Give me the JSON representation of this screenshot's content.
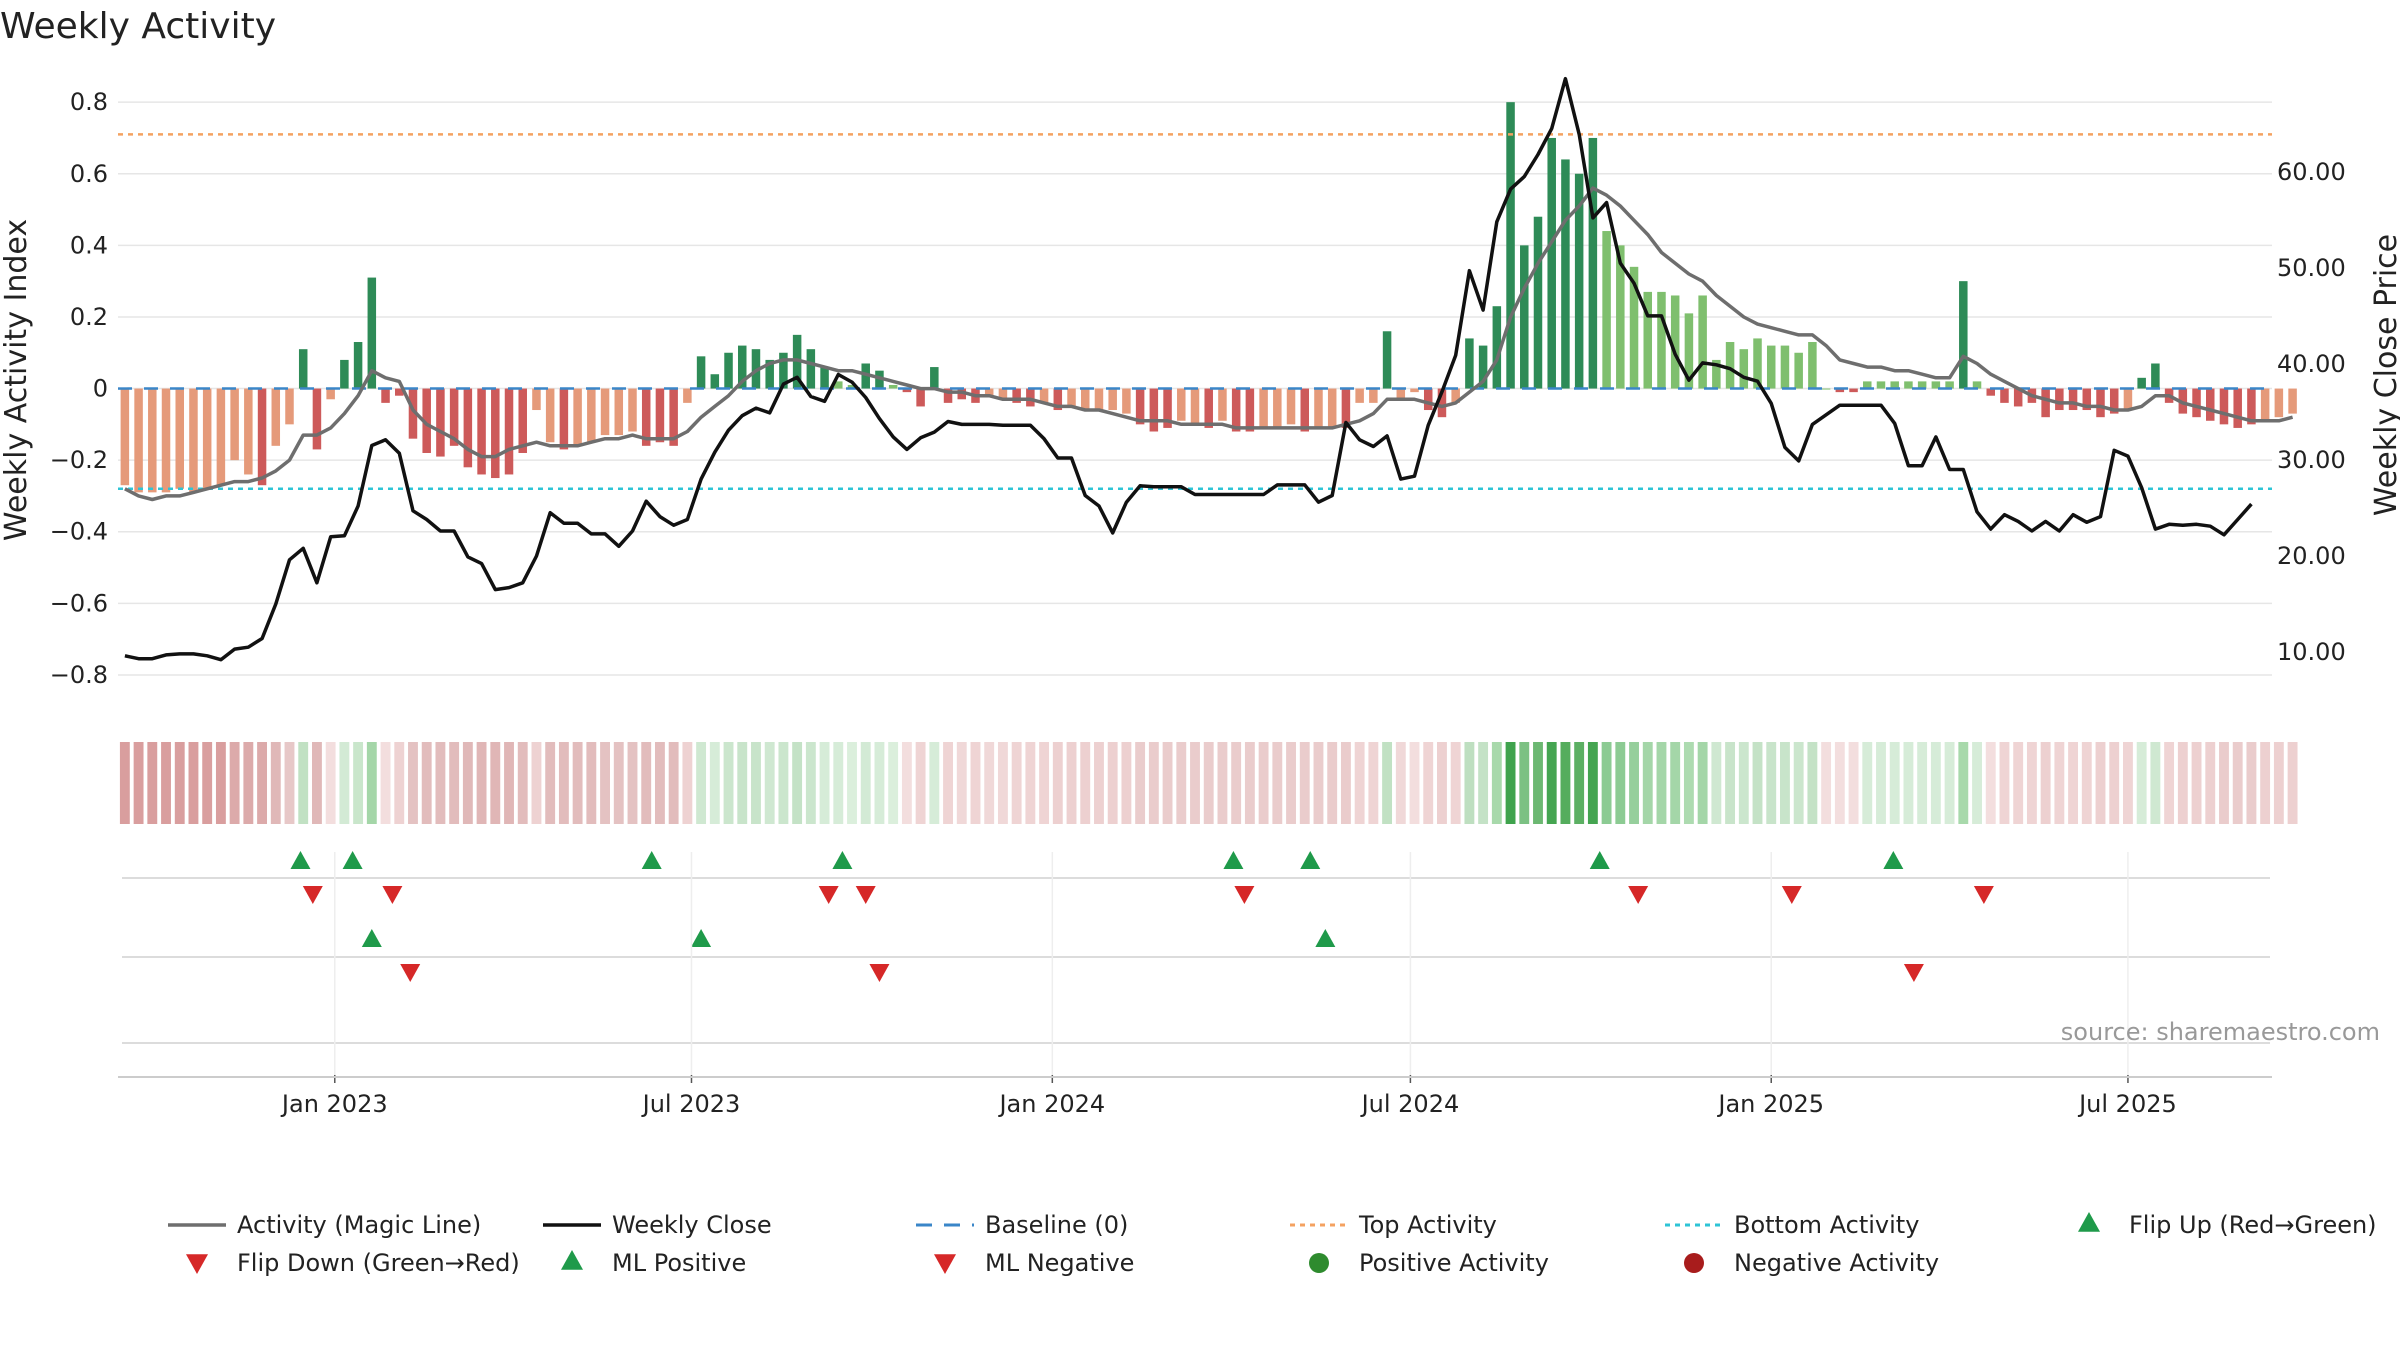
{
  "chart_data": {
    "type": "bar+line",
    "title": "Weekly Activity",
    "ylabel_left": "Weekly Activity Index",
    "ylabel_right": "Weekly Close Price",
    "ylim_left": [
      -0.87,
      0.82
    ],
    "ylim_right": [
      5.0,
      68.0
    ],
    "yticks_left": [
      {
        "value": 0.8,
        "label": "0.8"
      },
      {
        "value": 0.6,
        "label": "0.6"
      },
      {
        "value": 0.4,
        "label": "0.4"
      },
      {
        "value": 0.2,
        "label": "0.2"
      },
      {
        "value": 0,
        "label": "0"
      },
      {
        "value": -0.2,
        "label": "−0.2"
      },
      {
        "value": -0.4,
        "label": "−0.4"
      },
      {
        "value": -0.6,
        "label": "−0.6"
      },
      {
        "value": -0.8,
        "label": "−0.8"
      }
    ],
    "yticks_right": [
      {
        "value": 60,
        "label": "60.00"
      },
      {
        "value": 50,
        "label": "50.00"
      },
      {
        "value": 40,
        "label": "40.00"
      },
      {
        "value": 30,
        "label": "30.00"
      },
      {
        "value": 20,
        "label": "20.00"
      },
      {
        "value": 10,
        "label": "10.00"
      }
    ],
    "x_start_week": 0,
    "n_weeks": 157,
    "xticks": [
      {
        "week": 15.3,
        "label": "Jan 2023"
      },
      {
        "week": 41.3,
        "label": "Jul 2023"
      },
      {
        "week": 67.6,
        "label": "Jan 2024"
      },
      {
        "week": 93.7,
        "label": "Jul 2024"
      },
      {
        "week": 120.0,
        "label": "Jan 2025"
      },
      {
        "week": 146.0,
        "label": "Jul 2025"
      }
    ],
    "top_activity": 0.71,
    "bottom_activity": -0.28,
    "baseline": 0,
    "activity": [
      -0.27,
      -0.29,
      -0.29,
      -0.29,
      -0.28,
      -0.29,
      -0.28,
      -0.27,
      -0.2,
      -0.24,
      -0.27,
      -0.16,
      -0.1,
      0.11,
      -0.17,
      -0.03,
      0.08,
      0.13,
      0.31,
      -0.04,
      -0.02,
      -0.14,
      -0.18,
      -0.19,
      -0.16,
      -0.22,
      -0.24,
      -0.25,
      -0.24,
      -0.18,
      -0.06,
      -0.15,
      -0.17,
      -0.16,
      -0.15,
      -0.13,
      -0.13,
      -0.12,
      -0.16,
      -0.15,
      -0.16,
      -0.04,
      0.09,
      0.04,
      0.1,
      0.12,
      0.11,
      0.08,
      0.1,
      0.15,
      0.11,
      0.06,
      0.02,
      0.01,
      0.07,
      0.05,
      0.01,
      -0.01,
      -0.05,
      0.06,
      -0.04,
      -0.03,
      -0.04,
      -0.02,
      -0.03,
      -0.04,
      -0.05,
      -0.04,
      -0.06,
      -0.05,
      -0.06,
      -0.06,
      -0.06,
      -0.07,
      -0.1,
      -0.12,
      -0.11,
      -0.09,
      -0.1,
      -0.11,
      -0.09,
      -0.12,
      -0.12,
      -0.11,
      -0.11,
      -0.1,
      -0.12,
      -0.11,
      -0.11,
      -0.11,
      -0.04,
      -0.04,
      0.16,
      -0.03,
      -0.01,
      -0.06,
      -0.08,
      -0.04,
      0.14,
      0.12,
      0.23,
      0.8,
      0.4,
      0.48,
      0.7,
      0.64,
      0.6,
      0.7,
      0.44,
      0.4,
      0.34,
      0.27,
      0.27,
      0.26,
      0.21,
      0.26,
      0.08,
      0.13,
      0.11,
      0.14,
      0.12,
      0.12,
      0.1,
      0.13,
      0.0,
      -0.01,
      -0.01,
      0.02,
      0.02,
      0.02,
      0.02,
      0.02,
      0.02,
      0.02,
      0.3,
      0.02,
      -0.02,
      -0.04,
      -0.05,
      -0.04,
      -0.08,
      -0.06,
      -0.06,
      -0.06,
      -0.08,
      -0.07,
      -0.06,
      0.03,
      0.07,
      -0.04,
      -0.07,
      -0.08,
      -0.09,
      -0.1,
      -0.11,
      -0.1,
      -0.09,
      -0.08,
      -0.07
    ],
    "magic_line": [
      -0.28,
      -0.3,
      -0.31,
      -0.3,
      -0.3,
      -0.29,
      -0.28,
      -0.27,
      -0.26,
      -0.26,
      -0.25,
      -0.23,
      -0.2,
      -0.13,
      -0.13,
      -0.11,
      -0.07,
      -0.02,
      0.05,
      0.03,
      0.02,
      -0.06,
      -0.1,
      -0.12,
      -0.14,
      -0.17,
      -0.19,
      -0.19,
      -0.17,
      -0.16,
      -0.15,
      -0.16,
      -0.16,
      -0.16,
      -0.15,
      -0.14,
      -0.14,
      -0.13,
      -0.14,
      -0.14,
      -0.14,
      -0.12,
      -0.08,
      -0.05,
      -0.02,
      0.02,
      0.05,
      0.07,
      0.08,
      0.08,
      0.07,
      0.06,
      0.05,
      0.05,
      0.04,
      0.03,
      0.02,
      0.01,
      0.0,
      0.0,
      -0.01,
      -0.01,
      -0.02,
      -0.02,
      -0.03,
      -0.03,
      -0.03,
      -0.04,
      -0.05,
      -0.05,
      -0.06,
      -0.06,
      -0.07,
      -0.08,
      -0.09,
      -0.09,
      -0.09,
      -0.1,
      -0.1,
      -0.1,
      -0.1,
      -0.11,
      -0.11,
      -0.11,
      -0.11,
      -0.11,
      -0.11,
      -0.11,
      -0.11,
      -0.1,
      -0.09,
      -0.07,
      -0.03,
      -0.03,
      -0.03,
      -0.04,
      -0.05,
      -0.04,
      -0.01,
      0.02,
      0.08,
      0.2,
      0.28,
      0.35,
      0.41,
      0.47,
      0.51,
      0.56,
      0.54,
      0.51,
      0.47,
      0.43,
      0.38,
      0.35,
      0.32,
      0.3,
      0.26,
      0.23,
      0.2,
      0.18,
      0.17,
      0.16,
      0.15,
      0.15,
      0.12,
      0.08,
      0.07,
      0.06,
      0.06,
      0.05,
      0.05,
      0.04,
      0.03,
      0.03,
      0.09,
      0.07,
      0.04,
      0.02,
      0.0,
      -0.02,
      -0.03,
      -0.04,
      -0.04,
      -0.05,
      -0.05,
      -0.06,
      -0.06,
      -0.05,
      -0.02,
      -0.02,
      -0.04,
      -0.05,
      -0.06,
      -0.07,
      -0.08,
      -0.09,
      -0.09,
      -0.09,
      -0.08
    ],
    "weekly_close": [
      9.6,
      9.3,
      9.3,
      9.7,
      9.8,
      9.8,
      9.6,
      9.2,
      10.3,
      10.5,
      11.4,
      15.0,
      19.6,
      20.8,
      17.2,
      22.0,
      22.1,
      25.2,
      31.5,
      32.1,
      30.7,
      24.7,
      23.8,
      22.6,
      22.6,
      19.9,
      19.2,
      16.5,
      16.7,
      17.2,
      20.0,
      24.5,
      23.4,
      23.4,
      22.3,
      22.3,
      21.0,
      22.6,
      25.7,
      24.1,
      23.2,
      23.8,
      28.0,
      30.8,
      33.1,
      34.6,
      35.4,
      34.9,
      37.9,
      38.6,
      36.6,
      36.1,
      38.9,
      38.1,
      36.5,
      34.3,
      32.4,
      31.1,
      32.3,
      32.9,
      34.0,
      33.7,
      33.7,
      33.7,
      33.6,
      33.6,
      33.6,
      32.2,
      30.2,
      30.2,
      26.3,
      25.2,
      22.4,
      25.6,
      27.3,
      27.2,
      27.2,
      27.2,
      26.4,
      26.4,
      26.4,
      26.4,
      26.4,
      26.4,
      27.4,
      27.4,
      27.4,
      25.6,
      26.3,
      33.9,
      32.1,
      31.4,
      32.5,
      28.0,
      28.3,
      33.6,
      37.1,
      40.9,
      49.7,
      45.6,
      54.8,
      58.2,
      59.5,
      61.8,
      64.5,
      69.7,
      63.9,
      55.2,
      56.8,
      50.5,
      48.4,
      45.0,
      45.0,
      41.0,
      38.3,
      40.1,
      39.9,
      39.5,
      38.6,
      38.2,
      35.9,
      31.3,
      29.9,
      33.7,
      34.7,
      35.7,
      35.7,
      35.7,
      35.7,
      33.8,
      29.4,
      29.4,
      32.4,
      29.0,
      29.0,
      24.6,
      22.8,
      24.3,
      23.6,
      22.6,
      23.6,
      22.6,
      24.3,
      23.5,
      24.1,
      31.0,
      30.4,
      27.1,
      22.8,
      23.3,
      23.2,
      23.3,
      23.1,
      22.2,
      23.8,
      25.4
    ],
    "flip_up": [
      12.8,
      16.6,
      38.4,
      52.3,
      80.8,
      86.4,
      107.5,
      128.9
    ],
    "flip_down": [
      13.7,
      19.5,
      51.3,
      54.0,
      81.6,
      110.3,
      121.5,
      135.5
    ],
    "ml_positive": [
      18.0,
      42.0,
      87.5
    ],
    "ml_negative": [
      20.8,
      55.0,
      130.4
    ],
    "strip_colors": [
      "#d99e9e",
      "#d99e9e",
      "#d99e9e",
      "#d99e9e",
      "#d99e9e",
      "#d99e9e",
      "#d99e9e",
      "#d99e9e",
      "#dcaaaa",
      "#dcaaaa",
      "#dcaaaa",
      "#e0b8b8",
      "#e7c8c8",
      "#c1e1c3",
      "#e0b8b8",
      "#f3dede",
      "#d3ead5",
      "#c9e6cb",
      "#a4d6a8",
      "#f3dede",
      "#eed2d2",
      "#e4c2c2",
      "#e2bcbc",
      "#e2bcbc",
      "#e2bcbc",
      "#e0b8b8",
      "#e0b6b6",
      "#e0b6b6",
      "#e0b6b6",
      "#e2bcbc",
      "#eed2d2",
      "#e2bcbc",
      "#e2bcbc",
      "#e2bcbc",
      "#e2bcbc",
      "#e4c2c2",
      "#e4c2c2",
      "#e4c2c2",
      "#e2bcbc",
      "#e2bcbc",
      "#e2bcbc",
      "#eed2d2",
      "#cfe8d1",
      "#d6ecd8",
      "#cbe6cd",
      "#c8e4ca",
      "#c8e4ca",
      "#cfe8d1",
      "#cbe6cd",
      "#c4e2c6",
      "#cbe6cd",
      "#d6ecd8",
      "#d6ecd8",
      "#dbefdc",
      "#d3ead5",
      "#d6ecd8",
      "#dbefdc",
      "#f3dede",
      "#efd4d4",
      "#d6ecd8",
      "#efd4d4",
      "#f0d8d8",
      "#efd4d4",
      "#f0d8d8",
      "#f0d8d8",
      "#efd4d4",
      "#efd4d4",
      "#efd4d4",
      "#edd0d0",
      "#edd0d0",
      "#edd0d0",
      "#edd0d0",
      "#edd0d0",
      "#edd0d0",
      "#eacccc",
      "#eacccc",
      "#eacccc",
      "#eacccc",
      "#eacccc",
      "#eacccc",
      "#eacccc",
      "#eacccc",
      "#eacccc",
      "#eacccc",
      "#eacccc",
      "#eacccc",
      "#eacccc",
      "#eacccc",
      "#eacccc",
      "#eacccc",
      "#efd4d4",
      "#efd4d4",
      "#c1e1c3",
      "#f0d8d8",
      "#f3dede",
      "#efd4d4",
      "#edd0d0",
      "#efd4d4",
      "#bedfc0",
      "#c4e2c6",
      "#a8d9ab",
      "#3fa34d",
      "#7cc183",
      "#6cb872",
      "#45a551",
      "#55ad5d",
      "#5cb063",
      "#45a551",
      "#8ccb93",
      "#8ccb93",
      "#96cf9c",
      "#a4d6a8",
      "#a4d6a8",
      "#a4d6a8",
      "#addbb0",
      "#a4d6a8",
      "#cfe8d1",
      "#c8e4ca",
      "#cbe6cd",
      "#c4e2c6",
      "#c8e4ca",
      "#c8e4ca",
      "#cbe6cd",
      "#c4e2c6",
      "#f3dede",
      "#f3dede",
      "#f3dede",
      "#d6ecd8",
      "#d6ecd8",
      "#d6ecd8",
      "#d6ecd8",
      "#d6ecd8",
      "#d6ecd8",
      "#d6ecd8",
      "#a8d9ab",
      "#d6ecd8",
      "#f3dede",
      "#efd4d4",
      "#efd4d4",
      "#efd4d4",
      "#edd0d0",
      "#efd4d4",
      "#efd4d4",
      "#efd4d4",
      "#edd0d0",
      "#edd0d0",
      "#efd4d4",
      "#d6ecd8",
      "#cfe8d1",
      "#efd4d4",
      "#edd0d0",
      "#edd0d0",
      "#edd0d0",
      "#eacccc",
      "#eacccc",
      "#eacccc",
      "#edd0d0",
      "#edd0d0",
      "#edd0d0"
    ],
    "legend": [
      {
        "label": "Activity (Magic Line)",
        "marker": "line-gray"
      },
      {
        "label": "Weekly Close",
        "marker": "line-black"
      },
      {
        "label": "Baseline (0)",
        "marker": "dash-blue"
      },
      {
        "label": "Top Activity",
        "marker": "dot-orange"
      },
      {
        "label": "Bottom Activity",
        "marker": "dot-cyan"
      },
      {
        "label": "Flip Up (Red→Green)",
        "marker": "triangle-up-green"
      },
      {
        "label": "Flip Down (Green→Red)",
        "marker": "triangle-down-red"
      },
      {
        "label": "ML Positive",
        "marker": "triangle-up-green"
      },
      {
        "label": "ML Negative",
        "marker": "triangle-down-red"
      },
      {
        "label": "Positive Activity",
        "marker": "circle-green"
      },
      {
        "label": "Negative Activity",
        "marker": "circle-red"
      }
    ],
    "source": "source: sharemaestro.com"
  },
  "colors": {
    "pos_dark": "#2e8b57",
    "pos_light": "#7fbf6e",
    "neg_dark": "#cd5a5a",
    "neg_light": "#e59a7a",
    "magic_line": "#6e6e6e",
    "close_line": "#111111",
    "baseline": "#3a86c8",
    "top": "#f4a261",
    "bottom": "#2ec4d6",
    "marker_up": "#1f9a4a",
    "marker_down": "#d62828",
    "grid": "#e6e6e6",
    "source": "#999999"
  }
}
